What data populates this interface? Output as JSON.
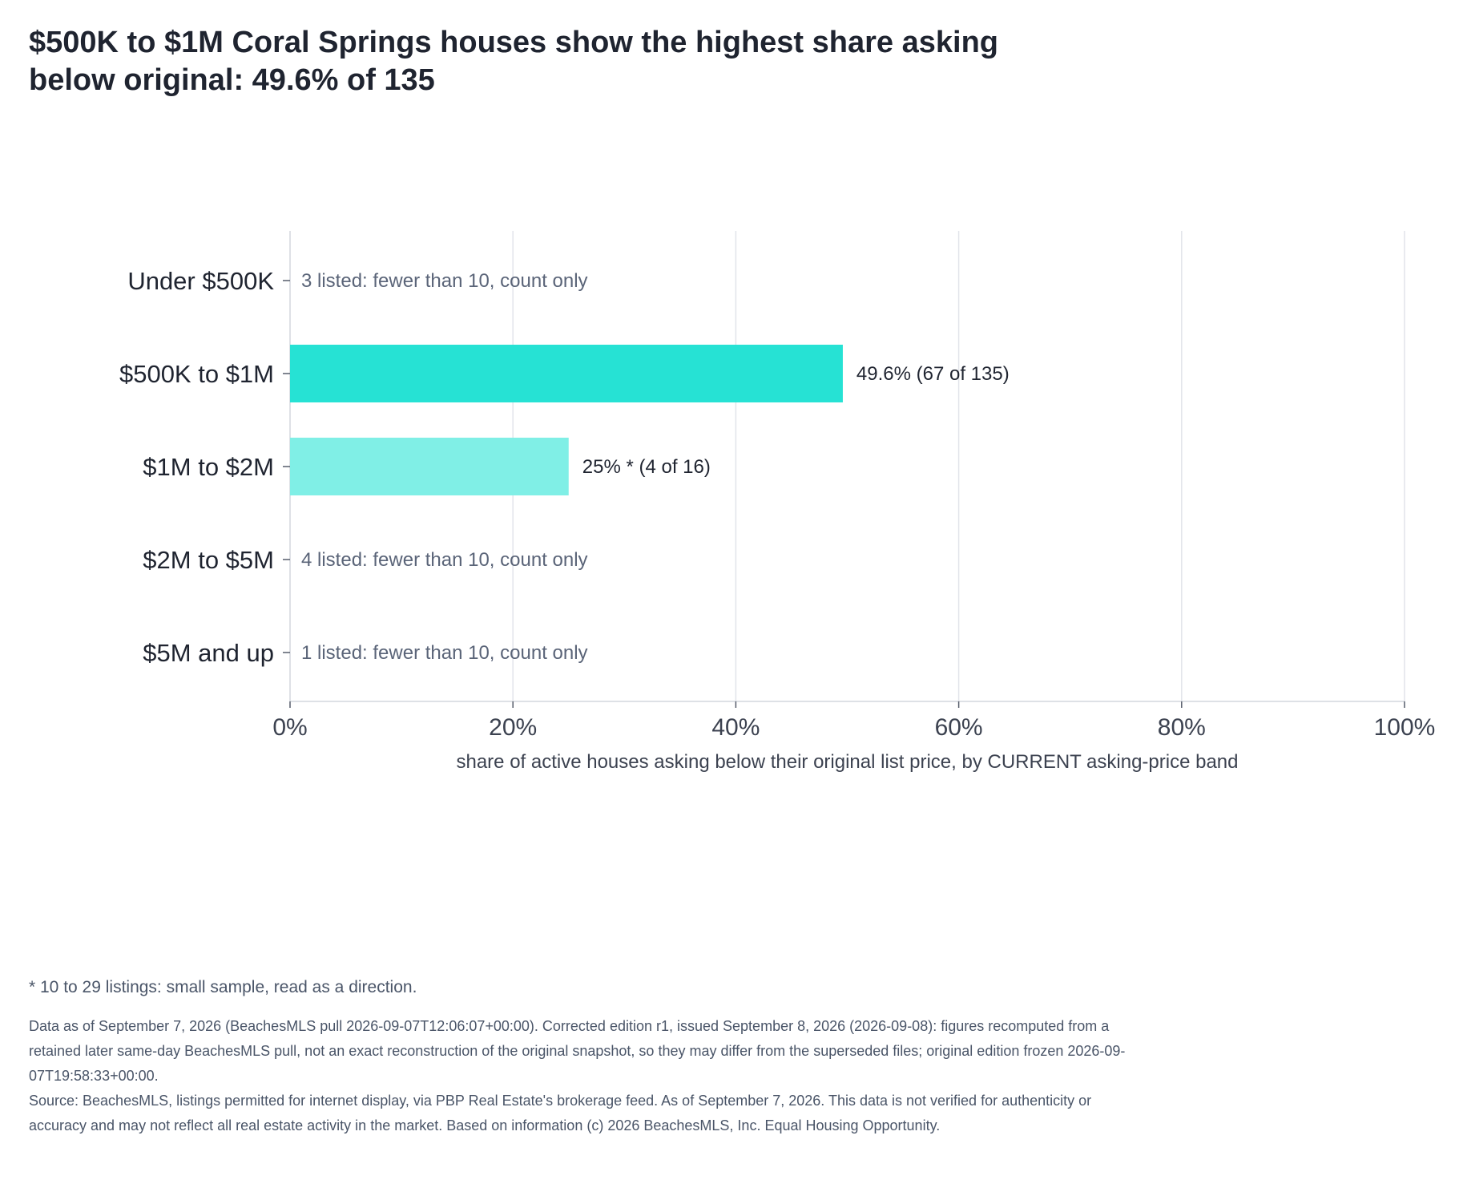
{
  "title": "$500K to $1M Coral Springs houses show the highest share asking below original: 49.6% of 135",
  "chart_data": {
    "type": "bar",
    "orientation": "horizontal",
    "categories": [
      "Under $500K",
      "$500K to $1M",
      "$1M to $2M",
      "$2M to $5M",
      "$5M and up"
    ],
    "values": [
      null,
      49.6,
      25,
      null,
      null
    ],
    "bar_labels": [
      "",
      "49.6%  (67 of 135)",
      "25% *  (4 of 16)",
      "",
      ""
    ],
    "count_notes": [
      "3 listed: fewer than 10, count only",
      "",
      "",
      "4 listed: fewer than 10, count only",
      "1 listed: fewer than 10, count only"
    ],
    "bar_colors": [
      "",
      "#26e2d4",
      "#80efe6",
      "",
      ""
    ],
    "xlabel": "share of active houses asking below their original list price, by CURRENT asking-price band",
    "ylabel": "",
    "xlim": [
      0,
      100
    ],
    "xticks": [
      0,
      20,
      40,
      60,
      80,
      100
    ],
    "xtick_labels": [
      "0%",
      "20%",
      "40%",
      "60%",
      "80%",
      "100%"
    ],
    "grid": "vertical"
  },
  "footnote": "* 10 to 29 listings: small sample, read as a direction.",
  "notes": [
    "Data as of September 7, 2026 (BeachesMLS pull 2026-09-07T12:06:07+00:00). Corrected edition r1, issued September 8, 2026 (2026-09-08): figures recomputed from a retained later same-day BeachesMLS pull, not an exact reconstruction of the original snapshot, so they may differ from the superseded files; original edition frozen 2026-09-07T19:58:33+00:00.",
    "Source: BeachesMLS, listings permitted for internet display, via PBP Real Estate's brokerage feed. As of September 7, 2026. This data is not verified for authenticity or accuracy and may not reflect all real estate activity in the market. Based on information (c) 2026 BeachesMLS, Inc. Equal Housing Opportunity."
  ]
}
